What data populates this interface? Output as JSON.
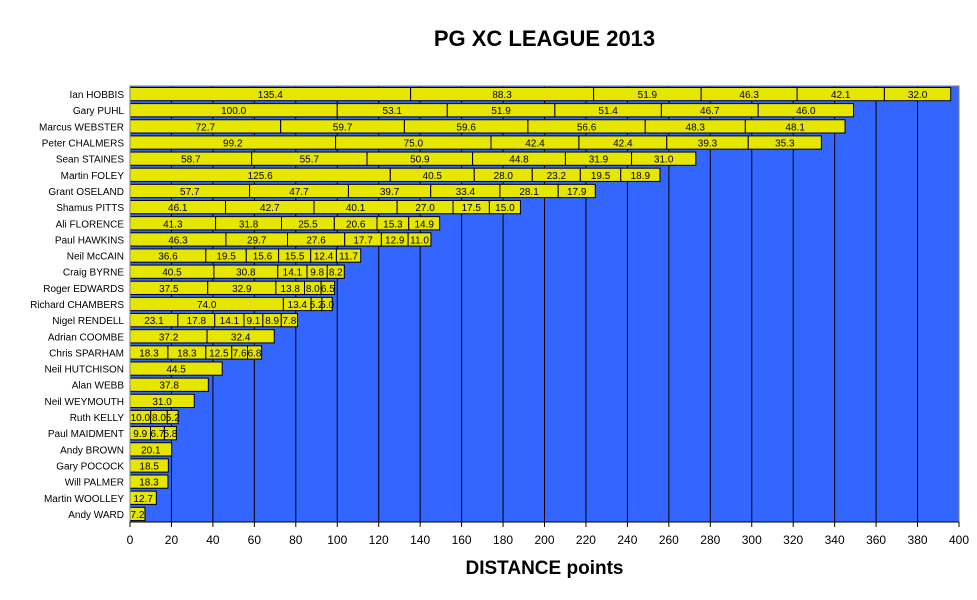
{
  "chart_data": {
    "type": "bar",
    "orientation": "horizontal",
    "stacked": true,
    "title": "PG XC LEAGUE 2013",
    "xlabel": "DISTANCE points",
    "ylabel": "",
    "xlim": [
      0,
      400
    ],
    "xticks": [
      "0",
      "20",
      "40",
      "60",
      "80",
      "100",
      "120",
      "140",
      "160",
      "180",
      "200",
      "220",
      "240",
      "260",
      "280",
      "300",
      "320",
      "340",
      "360",
      "380",
      "400"
    ],
    "grid": "vertical",
    "colors": {
      "plot_bg": "#3366ff",
      "bar_fill": "#e6e600",
      "bar_stroke": "#000000",
      "grid": "#000000"
    },
    "categories": [
      "Ian HOBBIS",
      "Gary PUHL",
      "Marcus WEBSTER",
      "Peter CHALMERS",
      "Sean STAINES",
      "Martin FOLEY",
      "Grant OSELAND",
      "Shamus PITTS",
      "Ali FLORENCE",
      "Paul HAWKINS",
      "Neil McCAIN",
      "Craig BYRNE",
      "Roger EDWARDS",
      "Richard CHAMBERS",
      "Nigel RENDELL",
      "Adrian COOMBE",
      "Chris SPARHAM",
      "Neil HUTCHISON",
      "Alan WEBB",
      "Neil WEYMOUTH",
      "Ruth KELLY",
      "Paul MAIDMENT",
      "Andy BROWN",
      "Gary POCOCK",
      "Will PALMER",
      "Martin WOOLLEY",
      "Andy WARD"
    ],
    "segments": [
      [
        135.4,
        88.3,
        51.9,
        46.3,
        42.1,
        32.0
      ],
      [
        100.0,
        53.1,
        51.9,
        51.4,
        46.7,
        46.0
      ],
      [
        72.7,
        59.7,
        59.6,
        56.6,
        48.3,
        48.1
      ],
      [
        99.2,
        75.0,
        42.4,
        42.4,
        39.3,
        35.3
      ],
      [
        58.7,
        55.7,
        50.9,
        44.8,
        31.9,
        31.0
      ],
      [
        125.6,
        40.5,
        28.0,
        23.2,
        19.5,
        18.9
      ],
      [
        57.7,
        47.7,
        39.7,
        33.4,
        28.1,
        17.9
      ],
      [
        46.1,
        42.7,
        40.1,
        27.0,
        17.5,
        15.0
      ],
      [
        41.3,
        31.8,
        25.5,
        20.6,
        15.3,
        14.9
      ],
      [
        46.3,
        29.7,
        27.6,
        17.7,
        12.9,
        11.0
      ],
      [
        36.6,
        19.5,
        15.6,
        15.5,
        12.4,
        11.7
      ],
      [
        40.5,
        30.8,
        14.1,
        9.8,
        8.2
      ],
      [
        37.5,
        32.9,
        13.8,
        8.0,
        6.5
      ],
      [
        74.0,
        13.4,
        5.2,
        5.0
      ],
      [
        23.1,
        17.8,
        14.1,
        9.1,
        8.9,
        7.8
      ],
      [
        37.2,
        32.4
      ],
      [
        18.3,
        18.3,
        12.5,
        7.6,
        6.8
      ],
      [
        44.5
      ],
      [
        37.8
      ],
      [
        31.0
      ],
      [
        10.0,
        8.0,
        5.2
      ],
      [
        9.9,
        6.7,
        5.8
      ],
      [
        20.1
      ],
      [
        18.5
      ],
      [
        18.3
      ],
      [
        12.7
      ],
      [
        7.2
      ]
    ],
    "segment_labels": [
      [
        "135.4",
        "88.3",
        "51.9",
        "46.3",
        "42.1",
        "32.0"
      ],
      [
        "100.0",
        "53.1",
        "51.9",
        "51.4",
        "46.7",
        "46.0"
      ],
      [
        "72.7",
        "59.7",
        "59.6",
        "56.6",
        "48.3",
        "48.1"
      ],
      [
        "99.2",
        "75.0",
        "42.4",
        "42.4",
        "39.3",
        "35.3"
      ],
      [
        "58.7",
        "55.7",
        "50.9",
        "44.8",
        "31.9",
        "31.0"
      ],
      [
        "125.6",
        "40.5",
        "28.0",
        "23.2",
        "19.5",
        "18.9"
      ],
      [
        "57.7",
        "47.7",
        "39.7",
        "33.4",
        "28.1",
        "17.9"
      ],
      [
        "46.1",
        "42.7",
        "40.1",
        "27.0",
        "17.5",
        "15.0"
      ],
      [
        "41.3",
        "31.8",
        "25.5",
        "20.6",
        "15.3",
        "14.9"
      ],
      [
        "46.3",
        "29.7",
        "27.6",
        "17.7",
        "12.9",
        "11.0"
      ],
      [
        "36.6",
        "19.5",
        "15.6",
        "15.5",
        "12.4",
        "11.7"
      ],
      [
        "40.5",
        "30.8",
        "14.1",
        "9.8",
        "8.2"
      ],
      [
        "37.5",
        "32.9",
        "13.8",
        "8.0",
        "6.5"
      ],
      [
        "74.0",
        "13.4",
        "5.2",
        "5.0"
      ],
      [
        "23.1",
        "17.8",
        "14.1",
        "9.1",
        "8.9",
        "7.8"
      ],
      [
        "37.2",
        "32.4"
      ],
      [
        "18.3",
        "18.3",
        "12.5",
        "7.6",
        "6.8"
      ],
      [
        "44.5"
      ],
      [
        "37.8"
      ],
      [
        "31.0"
      ],
      [
        "10.0",
        "8.0",
        "5.2"
      ],
      [
        "9.9",
        "6.7",
        "5.8"
      ],
      [
        "20.1"
      ],
      [
        "18.5"
      ],
      [
        "18.3"
      ],
      [
        "12.7"
      ],
      [
        "7.2"
      ]
    ]
  }
}
